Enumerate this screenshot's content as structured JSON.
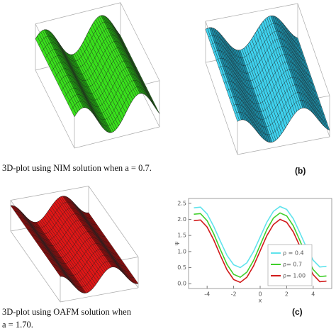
{
  "figure": {
    "caption_a": "3D-plot using NIM solution when a = 0.7.",
    "caption_c": [
      "3D-plot using OAFM solution when",
      "a = 1.70."
    ],
    "label_b": "(b)",
    "label_c": "(c)"
  },
  "chart_data": {
    "type": "line",
    "y_label": "ψ",
    "x_label": "x",
    "x": [
      -5,
      -4.5,
      -4,
      -3.5,
      -3,
      -2.5,
      -2,
      -1.5,
      -1,
      -0.5,
      0,
      0.5,
      1,
      1.5,
      2,
      2.5,
      3,
      3.5,
      4,
      4.5,
      5
    ],
    "series": [
      {
        "name": "ρ = 0.4",
        "color": "#5fe3ec",
        "values": [
          2.36,
          2.38,
          2.17,
          1.78,
          1.32,
          0.88,
          0.59,
          0.5,
          0.65,
          1.0,
          1.45,
          1.91,
          2.25,
          2.4,
          2.31,
          2.02,
          1.58,
          1.12,
          0.73,
          0.52,
          0.54
        ]
      },
      {
        "name": "ρ= 0.7",
        "color": "#3fcf2a",
        "values": [
          2.16,
          2.18,
          1.96,
          1.55,
          1.06,
          0.6,
          0.29,
          0.2,
          0.36,
          0.72,
          1.2,
          1.68,
          2.04,
          2.2,
          2.11,
          1.8,
          1.34,
          0.85,
          0.44,
          0.22,
          0.24
        ]
      },
      {
        "name": "ρ= 1.00",
        "color": "#d11a1a",
        "values": [
          1.96,
          1.98,
          1.76,
          1.36,
          0.88,
          0.43,
          0.13,
          0.04,
          0.2,
          0.55,
          1.02,
          1.49,
          1.84,
          2.0,
          1.91,
          1.61,
          1.16,
          0.68,
          0.28,
          0.06,
          0.08
        ]
      }
    ],
    "xlim": [
      -5.4,
      5.4
    ],
    "ylim": [
      -0.15,
      2.65
    ],
    "xticks": [
      -4,
      -2,
      0,
      2,
      4
    ],
    "yticks": [
      {
        "value": 0,
        "label": "0.0"
      },
      {
        "value": 0.5,
        "label": "0.5"
      },
      {
        "value": 1,
        "label": "1.0"
      },
      {
        "value": 1.5,
        "label": "1.5"
      },
      {
        "value": 2,
        "label": "2.0"
      },
      {
        "value": 2.5,
        "label": "2.5"
      }
    ],
    "legend": "lower right"
  }
}
